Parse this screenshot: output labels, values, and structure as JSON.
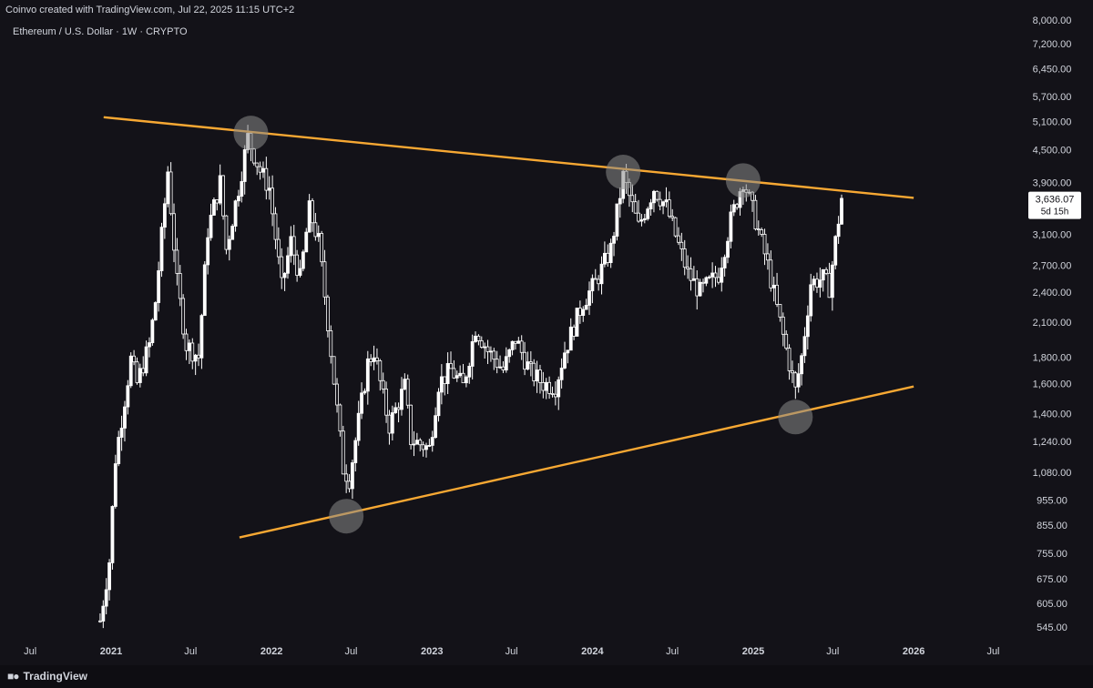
{
  "header": {
    "credit": "Coinvo created with TradingView.com, Jul 22, 2025 11:15 UTC+2",
    "symbol": "Ethereum / U.S. Dollar · 1W · CRYPTO"
  },
  "footer": {
    "brand": "TradingView",
    "brand_icon": "tradingview-logo-icon"
  },
  "chart_data": {
    "type": "candlestick",
    "title": "Ethereum / U.S. Dollar · 1W · CRYPTO",
    "xlim": [
      "2020-06-01",
      "2026-07-31"
    ],
    "ylim": [
      500,
      8000
    ],
    "y_scale": "log",
    "grid": false,
    "y_ticks": [
      545,
      605,
      675,
      755,
      855,
      955,
      1080,
      1240,
      1400,
      1600,
      1800,
      2100,
      2400,
      2700,
      3100,
      3900,
      4500,
      5100,
      5700,
      6450,
      7200,
      8000
    ],
    "y_tick_labels": [
      "545.00",
      "605.00",
      "675.00",
      "755.00",
      "855.00",
      "955.00",
      "1,080.00",
      "1,240.00",
      "1,400.00",
      "1,600.00",
      "1,800.00",
      "2,100.00",
      "2,400.00",
      "2,700.00",
      "3,100.00",
      "3,900.00",
      "4,500.00",
      "5,100.00",
      "5,700.00",
      "6,450.00",
      "7,200.00",
      "8,000.00"
    ],
    "x_ticks": [
      {
        "label": "Jul",
        "date": "2020-07-01"
      },
      {
        "label": "2021",
        "date": "2021-01-01"
      },
      {
        "label": "Jul",
        "date": "2021-07-01"
      },
      {
        "label": "2022",
        "date": "2022-01-01"
      },
      {
        "label": "Jul",
        "date": "2022-07-01"
      },
      {
        "label": "2023",
        "date": "2023-01-01"
      },
      {
        "label": "Jul",
        "date": "2023-07-01"
      },
      {
        "label": "2024",
        "date": "2024-01-01"
      },
      {
        "label": "Jul",
        "date": "2024-07-01"
      },
      {
        "label": "2025",
        "date": "2025-01-01"
      },
      {
        "label": "Jul",
        "date": "2025-07-01"
      },
      {
        "label": "2026",
        "date": "2026-01-01"
      },
      {
        "label": "Jul",
        "date": "2026-07-01"
      }
    ],
    "price_path": [
      [
        "2020-12-07",
        560
      ],
      [
        "2020-12-28",
        730
      ],
      [
        "2021-01-11",
        1150
      ],
      [
        "2021-02-15",
        1780
      ],
      [
        "2021-03-01",
        1600
      ],
      [
        "2021-03-29",
        1900
      ],
      [
        "2021-04-12",
        2300
      ],
      [
        "2021-05-10",
        4100
      ],
      [
        "2021-05-31",
        2500
      ],
      [
        "2021-06-21",
        1900
      ],
      [
        "2021-07-19",
        1800
      ],
      [
        "2021-08-09",
        3150
      ],
      [
        "2021-09-06",
        3900
      ],
      [
        "2021-09-20",
        2900
      ],
      [
        "2021-10-18",
        3800
      ],
      [
        "2021-11-08",
        4750
      ],
      [
        "2021-12-06",
        4100
      ],
      [
        "2021-12-27",
        3800
      ],
      [
        "2022-01-24",
        2450
      ],
      [
        "2022-02-14",
        3000
      ],
      [
        "2022-03-07",
        2550
      ],
      [
        "2022-03-28",
        3450
      ],
      [
        "2022-04-18",
        3000
      ],
      [
        "2022-05-09",
        2100
      ],
      [
        "2022-06-13",
        1100
      ],
      [
        "2022-06-27",
        1050
      ],
      [
        "2022-08-08",
        1750
      ],
      [
        "2022-08-22",
        1850
      ],
      [
        "2022-09-12",
        1500
      ],
      [
        "2022-09-26",
        1330
      ],
      [
        "2022-10-31",
        1580
      ],
      [
        "2022-11-14",
        1250
      ],
      [
        "2022-12-26",
        1200
      ],
      [
        "2023-01-16",
        1600
      ],
      [
        "2023-02-13",
        1700
      ],
      [
        "2023-03-13",
        1580
      ],
      [
        "2023-04-10",
        2050
      ],
      [
        "2023-05-08",
        1850
      ],
      [
        "2023-06-12",
        1700
      ],
      [
        "2023-07-10",
        1950
      ],
      [
        "2023-08-14",
        1680
      ],
      [
        "2023-09-11",
        1600
      ],
      [
        "2023-10-09",
        1580
      ],
      [
        "2023-10-30",
        1850
      ],
      [
        "2023-12-11",
        2300
      ],
      [
        "2024-01-08",
        2500
      ],
      [
        "2024-02-12",
        2900
      ],
      [
        "2024-03-11",
        4000
      ],
      [
        "2024-04-15",
        3200
      ],
      [
        "2024-05-20",
        3800
      ],
      [
        "2024-06-17",
        3500
      ],
      [
        "2024-08-05",
        2600
      ],
      [
        "2024-09-02",
        2400
      ],
      [
        "2024-10-14",
        2600
      ],
      [
        "2024-11-11",
        3300
      ],
      [
        "2024-12-09",
        3950
      ],
      [
        "2025-01-06",
        3300
      ],
      [
        "2025-02-03",
        2700
      ],
      [
        "2025-03-03",
        2100
      ],
      [
        "2025-04-07",
        1550
      ],
      [
        "2025-04-21",
        1800
      ],
      [
        "2025-05-12",
        2500
      ],
      [
        "2025-06-09",
        2550
      ],
      [
        "2025-06-23",
        2450
      ],
      [
        "2025-07-07",
        3000
      ],
      [
        "2025-07-21",
        3636
      ]
    ],
    "last_price": {
      "label": "3,636.07",
      "countdown": "5d 15h",
      "value": 3636.07
    },
    "trendlines": [
      {
        "name": "resistance",
        "color": "#f7a833",
        "start": [
          "2020-12-15",
          5200
        ],
        "end": [
          "2026-01-01",
          3640
        ]
      },
      {
        "name": "support",
        "color": "#f7a833",
        "start": [
          "2021-10-20",
          810
        ],
        "end": [
          "2026-01-01",
          1580
        ]
      }
    ],
    "touch_points": [
      {
        "date": "2021-11-15",
        "value": 4850
      },
      {
        "date": "2022-06-20",
        "value": 890
      },
      {
        "date": "2024-03-11",
        "value": 4080
      },
      {
        "date": "2024-12-09",
        "value": 3930
      },
      {
        "date": "2025-04-07",
        "value": 1380
      }
    ],
    "colors": {
      "background": "#131218",
      "candle": "#ffffff",
      "trendline": "#f7a833",
      "marker": "#8a8a8a"
    }
  }
}
